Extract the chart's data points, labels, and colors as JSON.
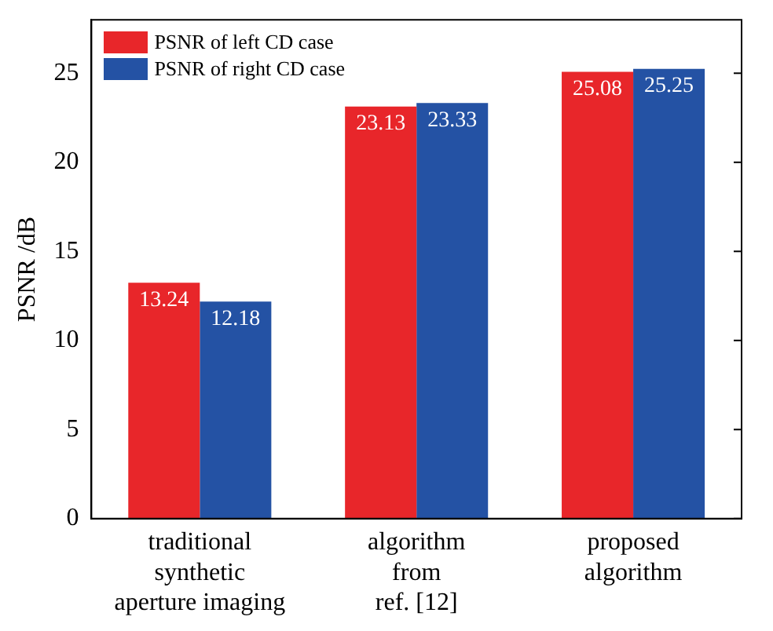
{
  "chart_data": {
    "type": "bar",
    "ylabel": "PSNR /dB",
    "categories": [
      "traditional\nsynthetic\naperture imaging",
      "algorithm\nfrom\nref. [12]",
      "proposed\nalgorithm"
    ],
    "series": [
      {
        "name": "PSNR of left CD case",
        "color": "#e8262a",
        "values": [
          13.24,
          23.13,
          25.08
        ]
      },
      {
        "name": "PSNR of right CD case",
        "color": "#2452a4",
        "values": [
          12.18,
          23.33,
          25.25
        ]
      }
    ],
    "ylim": [
      0,
      28
    ],
    "yticks": [
      0,
      5,
      10,
      15,
      20,
      25
    ],
    "grid": false,
    "legend": "top left",
    "data_labels": true
  }
}
